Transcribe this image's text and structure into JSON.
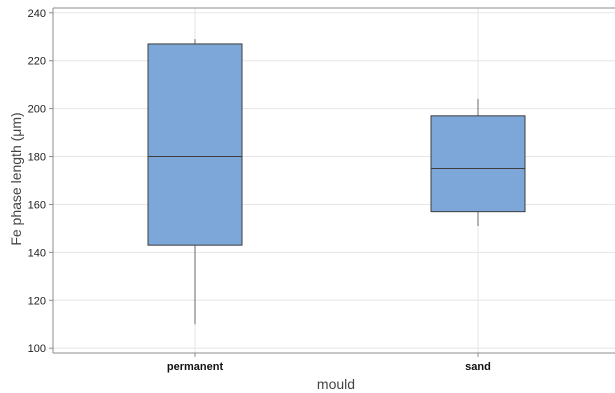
{
  "chart_data": {
    "type": "box",
    "title": "",
    "xlabel": "mould",
    "ylabel": "Fe phase length (μm)",
    "categories": [
      "permanent",
      "sand"
    ],
    "boxes": [
      {
        "category": "permanent",
        "whisker_low": 110,
        "q1": 143,
        "median": 180,
        "q3": 227,
        "whisker_high": 229
      },
      {
        "category": "sand",
        "whisker_low": 151,
        "q1": 157,
        "median": 175,
        "q3": 197,
        "whisker_high": 204
      }
    ],
    "ylim": [
      98,
      242
    ],
    "yticks": [
      100,
      120,
      140,
      160,
      180,
      200,
      220,
      240
    ],
    "grid": true,
    "legend": "none",
    "colors": {
      "box_fill": "#7da7d9",
      "box_stroke": "#3d3d3d",
      "grid": "#e6e6e6",
      "frame": "#8c8c8c"
    }
  }
}
